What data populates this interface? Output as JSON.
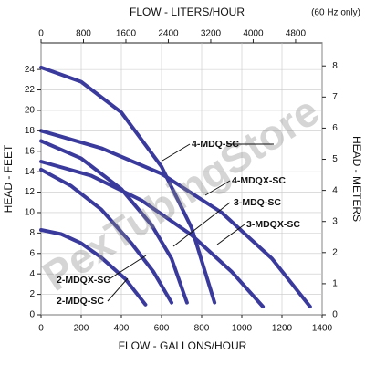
{
  "chart_data": {
    "type": "line",
    "title": "FLOW - LITERS/HOUR",
    "subtitle": "(60 Hz only)",
    "x_label": "FLOW - GALLONS/HOUR",
    "y_label": "HEAD - FEET",
    "y2_label": "HEAD - METERS",
    "watermark": "PexTubingStore",
    "xlim": [
      0,
      1400
    ],
    "xticks": [
      0,
      200,
      400,
      600,
      800,
      1000,
      1200,
      1400
    ],
    "x2lim": [
      0,
      5300
    ],
    "x2ticks": [
      0,
      800,
      1600,
      2400,
      3200,
      4000,
      4800
    ],
    "ylim": [
      0,
      26.6
    ],
    "yticks": [
      0,
      2,
      4,
      6,
      8,
      10,
      12,
      14,
      16,
      18,
      20,
      22,
      24
    ],
    "y2lim": [
      0,
      8.74
    ],
    "y2ticks": [
      0,
      1,
      2,
      3,
      4,
      5,
      6,
      7,
      8
    ],
    "grid": true,
    "color": "#3a3a9c",
    "series": [
      {
        "name": "4-MDQ-SC",
        "x": [
          0,
          200,
          400,
          600,
          750,
          864
        ],
        "values": [
          24.2,
          22.8,
          19.8,
          14.5,
          8.5,
          1.2
        ]
      },
      {
        "name": "4-MDQX-SC",
        "x": [
          0,
          300,
          600,
          900,
          1150,
          1340
        ],
        "values": [
          18,
          16.3,
          13.8,
          10,
          5.5,
          0.8
        ]
      },
      {
        "name": "3-MDQ-SC",
        "x": [
          0,
          200,
          400,
          550,
          650,
          727
        ],
        "values": [
          17,
          15.3,
          12.3,
          8.8,
          5.5,
          1.2
        ]
      },
      {
        "name": "3-MDQX-SC",
        "x": [
          0,
          250,
          500,
          750,
          950,
          1105
        ],
        "values": [
          15,
          13.6,
          11.2,
          7.8,
          4.2,
          0.8
        ]
      },
      {
        "name": "2-MDQX-SC",
        "x": [
          0,
          150,
          300,
          450,
          560,
          650
        ],
        "values": [
          14.2,
          12.6,
          10.3,
          7,
          4.2,
          1.2
        ]
      },
      {
        "name": "2-MDQ-SC",
        "x": [
          0,
          100,
          200,
          300,
          420,
          520
        ],
        "values": [
          8.3,
          7.9,
          7,
          5.6,
          3.5,
          1
        ]
      }
    ]
  }
}
